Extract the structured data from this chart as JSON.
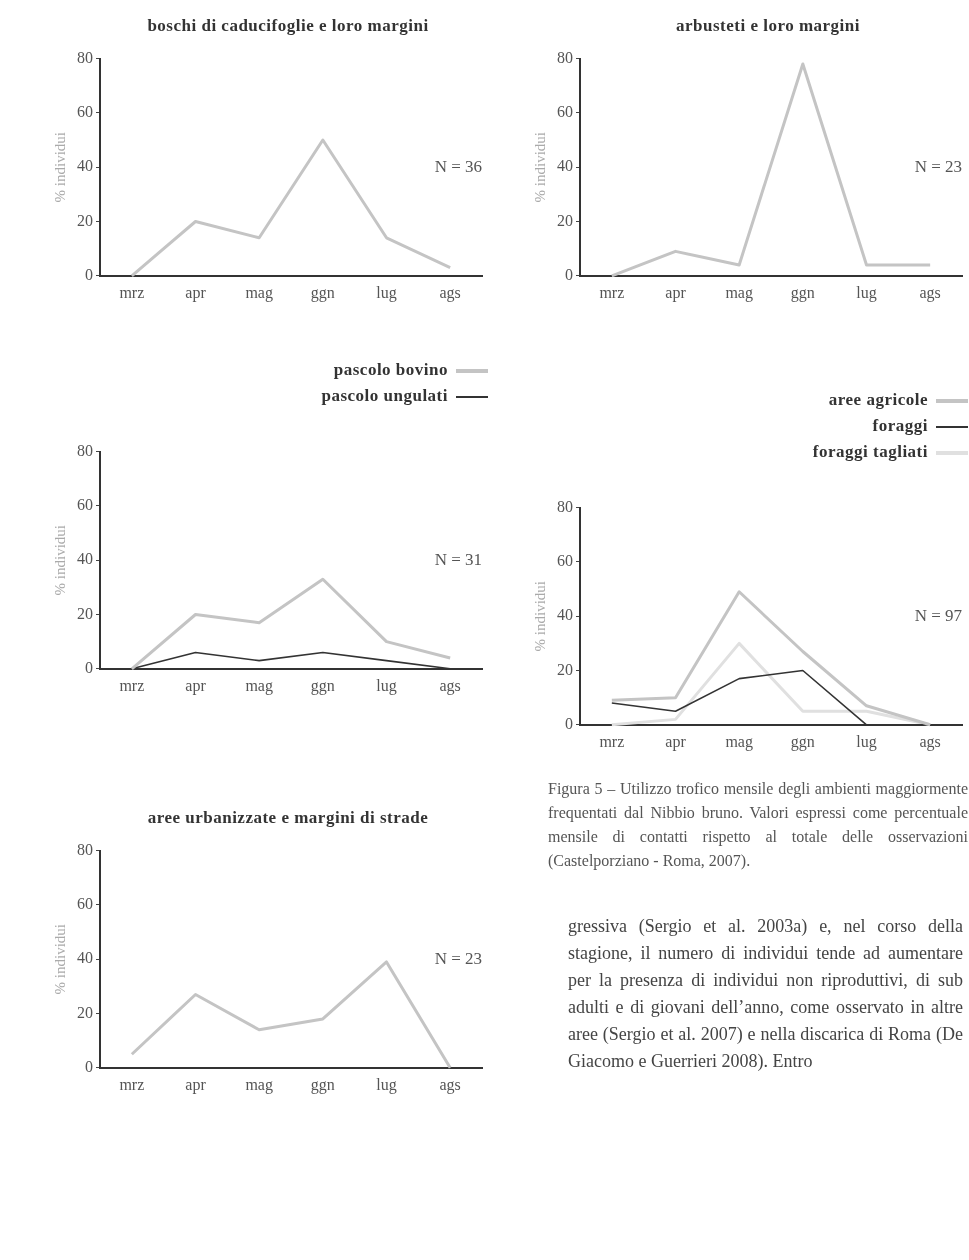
{
  "chart_data": [
    {
      "type": "line",
      "title": "boschi di caducifoglie e loro margini",
      "ylabel": "% individui",
      "categories": [
        "mrz",
        "apr",
        "mag",
        "ggn",
        "lug",
        "ags"
      ],
      "series": [
        {
          "color": "#c4c4c4",
          "values": [
            0,
            20,
            14,
            50,
            14,
            3
          ]
        }
      ],
      "ylim": [
        0,
        80
      ],
      "yticks": [
        0,
        20,
        40,
        60,
        80
      ],
      "grid": false,
      "legend": false,
      "marker": "none",
      "annotations": [
        "N = 36"
      ]
    },
    {
      "type": "line",
      "title": "arbusteti e loro margini",
      "ylabel": "% individui",
      "categories": [
        "mrz",
        "apr",
        "mag",
        "ggn",
        "lug",
        "ags"
      ],
      "series": [
        {
          "color": "#c4c4c4",
          "values": [
            0,
            9,
            4,
            78,
            4,
            4
          ]
        }
      ],
      "ylim": [
        0,
        80
      ],
      "yticks": [
        0,
        20,
        40,
        60,
        80
      ],
      "grid": false,
      "legend": false,
      "marker": "none",
      "annotations": [
        "N = 23"
      ]
    },
    {
      "type": "line",
      "ylabel": "% individui",
      "categories": [
        "mrz",
        "apr",
        "mag",
        "ggn",
        "lug",
        "ags"
      ],
      "series": [
        {
          "name": "pascolo bovino",
          "color": "#c4c4c4",
          "values": [
            0,
            20,
            17,
            33,
            10,
            4
          ]
        },
        {
          "name": "pascolo ungulati",
          "color": "#333333",
          "values": [
            0,
            6,
            3,
            6,
            3,
            0
          ]
        }
      ],
      "ylim": [
        0,
        80
      ],
      "yticks": [
        0,
        20,
        40,
        60,
        80
      ],
      "grid": false,
      "legend": "top right",
      "marker": "none",
      "annotations": [
        "N = 31"
      ]
    },
    {
      "type": "line",
      "ylabel": "% individui",
      "categories": [
        "mrz",
        "apr",
        "mag",
        "ggn",
        "lug",
        "ags"
      ],
      "series": [
        {
          "name": "aree agricole",
          "color": "#c4c4c4",
          "values": [
            9,
            10,
            49,
            27,
            7,
            0
          ]
        },
        {
          "name": "foraggi",
          "color": "#333333",
          "values": [
            8,
            5,
            17,
            20,
            0,
            0
          ]
        },
        {
          "name": "foraggi tagliati",
          "color": "#e0e0e0",
          "values": [
            0,
            2,
            30,
            5,
            5,
            0
          ]
        }
      ],
      "ylim": [
        0,
        80
      ],
      "yticks": [
        0,
        20,
        40,
        60,
        80
      ],
      "grid": false,
      "legend": "top right",
      "marker": "none",
      "annotations": [
        "N = 97",
        "Figura 5 – Utilizzo trofico mensile degli ambienti maggiormente frequentati dal Nibbio bruno. Valori espressi come percentuale mensile di contatti rispetto al totale delle osservazioni (Castelporziano - Roma, 2007)."
      ]
    },
    {
      "type": "line",
      "title": "aree urbanizzate e margini di strade",
      "ylabel": "% individui",
      "categories": [
        "mrz",
        "apr",
        "mag",
        "ggn",
        "lug",
        "ags"
      ],
      "series": [
        {
          "color": "#c4c4c4",
          "values": [
            5,
            27,
            14,
            18,
            39,
            0
          ]
        }
      ],
      "ylim": [
        0,
        80
      ],
      "yticks": [
        0,
        20,
        40,
        60,
        80
      ],
      "grid": false,
      "legend": false,
      "marker": "none",
      "annotations": [
        "N = 23"
      ]
    },
    {
      "type": "other",
      "annotations": [
        "gressiva (Sergio et al. 2003a) e, nel corso della stagione, il numero di individui tende ad aumentare per la presenza di individui non riproduttivi, di sub adulti e di giovani dell’anno, come osservato in altre aree (Sergio et al. 2007) e nella discarica di Roma (De Giacomo e Guerrieri 2008). Entro"
      ]
    }
  ]
}
